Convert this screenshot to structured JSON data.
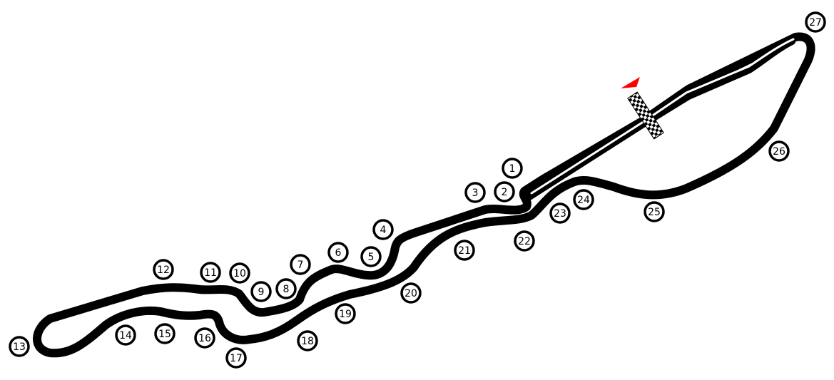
{
  "colors": {
    "track": "#000000",
    "pit_gap": "#ffffff",
    "flag_marker": "#ff0000",
    "background": "#ffffff"
  },
  "icons": {
    "start_finish": "checkered-flag-icon",
    "direction": "red-flag-icon"
  },
  "turns": [
    "1",
    "2",
    "3",
    "4",
    "5",
    "6",
    "7",
    "8",
    "9",
    "10",
    "11",
    "12",
    "13",
    "14",
    "15",
    "16",
    "17",
    "18",
    "19",
    "20",
    "21",
    "22",
    "23",
    "24",
    "25",
    "26",
    "27"
  ]
}
